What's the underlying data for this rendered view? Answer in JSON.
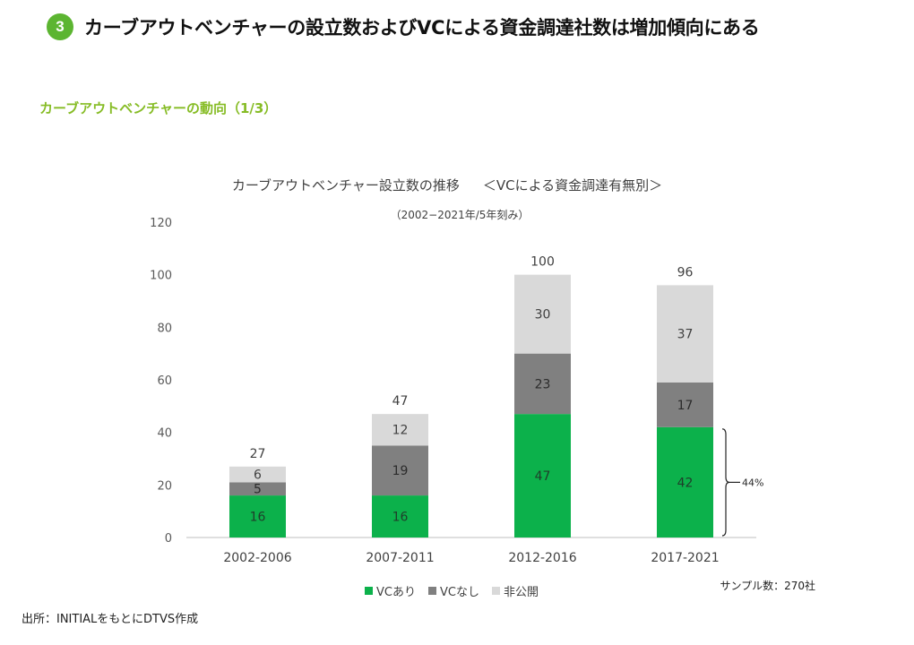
{
  "header": {
    "badge": "3",
    "title": "カーブアウトベンチャーの設立数およびVCによる資金調達社数は増加傾向にある"
  },
  "subheading": "カーブアウトベンチャーの動向（1/3）",
  "chart_data": {
    "type": "bar",
    "stacked": true,
    "title": "カーブアウトベンチャー設立数の推移",
    "title_note": "＜VCによる資金調達有無別＞",
    "subtitle": "（2002−2021年/5年刻み）",
    "categories": [
      "2002-2006",
      "2007-2011",
      "2012-2016",
      "2017-2021"
    ],
    "series": [
      {
        "name": "VCあり",
        "values": [
          16,
          16,
          47,
          42
        ],
        "color": "#0cb14b"
      },
      {
        "name": "VCなし",
        "values": [
          5,
          19,
          23,
          17
        ],
        "color": "#808080"
      },
      {
        "name": "非公開",
        "values": [
          6,
          12,
          30,
          37
        ],
        "color": "#d9d9d9"
      }
    ],
    "totals": [
      27,
      47,
      100,
      96
    ],
    "ylim": [
      0,
      120
    ],
    "yticks": [
      0,
      20,
      40,
      60,
      80,
      100,
      120
    ],
    "grid": false,
    "legend_position": "bottom",
    "annotation": {
      "text": "44%",
      "category": "2017-2021",
      "series": "VCあり"
    }
  },
  "sample_note": "サンプル数：270社",
  "source": "出所：INITIALをもとにDTVS作成"
}
